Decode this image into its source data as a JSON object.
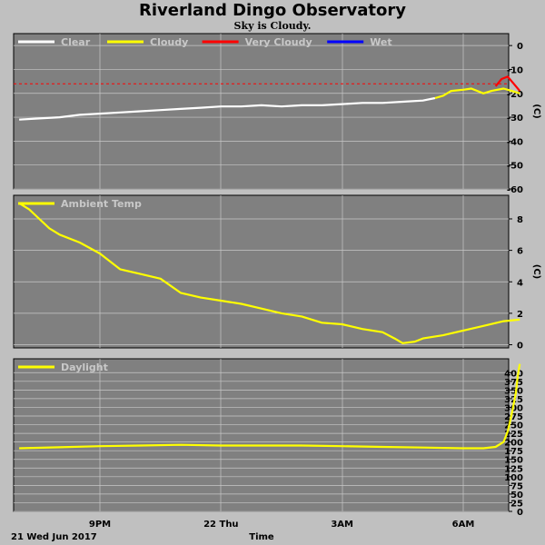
{
  "title": "Riverland Dingo Observatory",
  "subtitle": "Sky is Cloudy.",
  "footer": {
    "date_label": "21 Wed Jun 2017",
    "xlabel": "Time"
  },
  "colors": {
    "background": "#c0c0c0",
    "panel": "#808080",
    "grid": "#c8c8c8",
    "clear": "#ffffff",
    "cloudy": "#ffff00",
    "very_cloudy": "#ff0000",
    "wet": "#0000ff",
    "threshold": "#ff0000"
  },
  "chart_data": [
    {
      "type": "line",
      "panel": "sky",
      "legend": [
        {
          "name": "Clear",
          "color": "#ffffff"
        },
        {
          "name": "Cloudy",
          "color": "#ffff00"
        },
        {
          "name": "Very Cloudy",
          "color": "#ff0000"
        },
        {
          "name": "Wet",
          "color": "#0000ff"
        }
      ],
      "ylabel": "(C)",
      "ylim": [
        -60,
        5
      ],
      "yticks": [
        "0",
        "-10",
        "-20",
        "-30",
        "-40",
        "-50",
        "-60"
      ],
      "ytick_values": [
        0,
        -10,
        -20,
        -30,
        -40,
        -50,
        -60
      ],
      "threshold": -16,
      "x_range_hours": [
        19.0,
        7.5
      ],
      "series": [
        {
          "name": "Clear",
          "color": "#ffffff",
          "x": [
            19.0,
            19.5,
            20.0,
            20.5,
            21.0,
            21.5,
            22.0,
            22.5,
            23.0,
            23.5,
            24.0,
            24.5,
            25.0,
            25.5,
            26.0,
            26.5,
            27.0,
            27.5,
            28.0,
            28.5,
            29.0,
            29.3
          ],
          "y": [
            -31,
            -30.5,
            -30,
            -29,
            -28.5,
            -28,
            -27.5,
            -27,
            -26.5,
            -26,
            -25.5,
            -25.5,
            -25,
            -25.5,
            -25,
            -25,
            -24.5,
            -24,
            -24,
            -23.5,
            -23,
            -22
          ]
        },
        {
          "name": "Cloudy",
          "color": "#ffff00",
          "x": [
            29.3,
            29.5,
            29.7,
            30.0,
            30.2,
            30.5,
            30.7,
            31.0,
            31.2,
            31.4
          ],
          "y": [
            -22,
            -21,
            -19,
            -18.5,
            -18,
            -20,
            -19,
            -18,
            -19,
            -20
          ]
        },
        {
          "name": "Very Cloudy",
          "color": "#ff0000",
          "x": [
            30.8,
            30.95,
            31.1,
            31.25,
            31.4
          ],
          "y": [
            -17,
            -14,
            -13,
            -16,
            -19
          ]
        }
      ]
    },
    {
      "type": "line",
      "panel": "ambient",
      "legend": [
        {
          "name": "Ambient Temp",
          "color": "#ffff00"
        }
      ],
      "ylabel": "(C)",
      "ylim": [
        -0.2,
        9.5
      ],
      "yticks": [
        "0",
        "2",
        "4",
        "6",
        "8"
      ],
      "ytick_values": [
        0,
        2,
        4,
        6,
        8
      ],
      "x_range_hours": [
        19.0,
        7.5
      ],
      "series": [
        {
          "name": "Ambient Temp",
          "color": "#ffff00",
          "x": [
            19.0,
            19.25,
            19.5,
            19.75,
            20.0,
            20.5,
            21.0,
            21.5,
            22.0,
            22.5,
            23.0,
            23.5,
            24.0,
            24.5,
            25.0,
            25.5,
            26.0,
            26.5,
            27.0,
            27.5,
            28.0,
            28.3,
            28.5,
            28.8,
            29.0,
            29.5,
            30.0,
            30.5,
            31.0,
            31.4
          ],
          "y": [
            9.0,
            8.6,
            8.0,
            7.4,
            7.0,
            6.5,
            5.8,
            4.8,
            4.5,
            4.2,
            3.3,
            3.0,
            2.8,
            2.6,
            2.3,
            2.0,
            1.8,
            1.4,
            1.3,
            1.0,
            0.8,
            0.4,
            0.1,
            0.2,
            0.4,
            0.6,
            0.9,
            1.2,
            1.5,
            1.6
          ]
        }
      ]
    },
    {
      "type": "line",
      "panel": "daylight",
      "legend": [
        {
          "name": "Daylight",
          "color": "#ffff00"
        }
      ],
      "ylabel": "",
      "ylim": [
        0,
        440
      ],
      "yticks": [
        "0",
        "25",
        "50",
        "75",
        "100",
        "125",
        "150",
        "175",
        "200",
        "225",
        "250",
        "275",
        "300",
        "325",
        "350",
        "375",
        "400"
      ],
      "ytick_values": [
        0,
        25,
        50,
        75,
        100,
        125,
        150,
        175,
        200,
        225,
        250,
        275,
        300,
        325,
        350,
        375,
        400
      ],
      "x_range_hours": [
        19.0,
        7.5
      ],
      "series": [
        {
          "name": "Daylight",
          "color": "#ffff00",
          "x": [
            19.0,
            20.0,
            21.0,
            22.0,
            23.0,
            24.0,
            25.0,
            26.0,
            27.0,
            28.0,
            29.0,
            30.0,
            30.5,
            30.8,
            31.0,
            31.1,
            31.2,
            31.3,
            31.35,
            31.4
          ],
          "y": [
            182,
            185,
            188,
            190,
            192,
            190,
            190,
            190,
            188,
            186,
            184,
            182,
            182,
            186,
            200,
            230,
            280,
            340,
            390,
            425
          ]
        }
      ]
    }
  ],
  "xticks": [
    "9PM",
    "22 Thu",
    "3AM",
    "6AM"
  ],
  "xtick_values": [
    21,
    24,
    27,
    30
  ]
}
